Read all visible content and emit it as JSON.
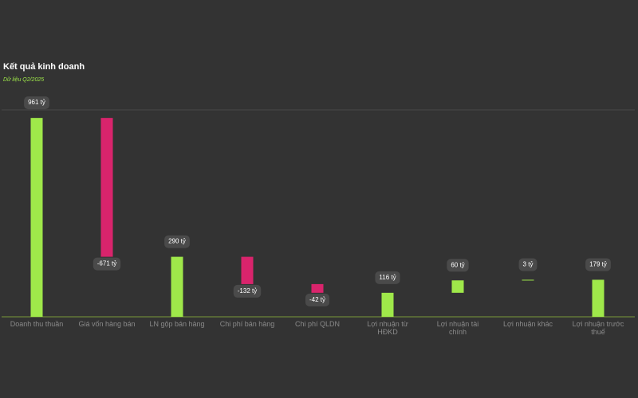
{
  "chart_data": {
    "type": "waterfall",
    "title": "Kết quả kinh doanh",
    "subtitle": "Dữ liệu Q2/2025",
    "categories": [
      "Doanh thu thuần",
      "Giá vốn hàng bán",
      "LN gộp bán hàng",
      "Chi phí bán hàng",
      "Chi phí QLDN",
      "Lợi nhuận từ HĐKD",
      "Lợi nhuận tài chính",
      "Lợi nhuận khác",
      "Lợi nhuận trước thuế"
    ],
    "values": [
      961,
      -671,
      290,
      -132,
      -42,
      116,
      60,
      3,
      179
    ],
    "value_labels": [
      "961 tỷ",
      "-671 tỷ",
      "290 tỷ",
      "-132 tỷ",
      "-42 tỷ",
      "116 tỷ",
      "60 tỷ",
      "3 tỷ",
      "179 tỷ"
    ],
    "colors": {
      "positive": "#9fe84a",
      "negative": "#d9246c"
    },
    "ylim": [
      0,
      1000
    ]
  }
}
